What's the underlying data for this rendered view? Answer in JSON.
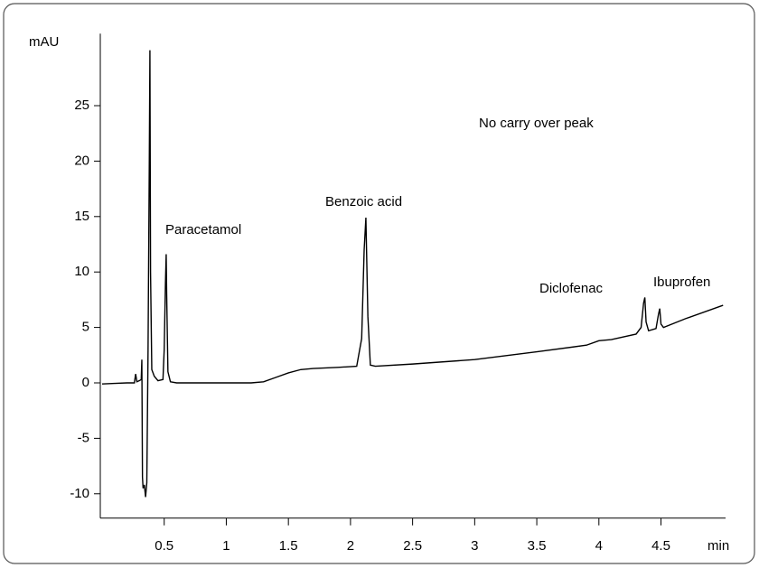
{
  "chart_data": {
    "type": "line",
    "y_label": "mAU",
    "x_label": "min",
    "annotations": [
      "Paracetamol",
      "Benzoic acid",
      "No carry over peak",
      "Diclofenac",
      "Ibuprofen"
    ],
    "color": "#000000",
    "x": [
      0,
      0.1,
      0.2,
      0.26,
      0.27,
      0.28,
      0.3,
      0.315,
      0.32,
      0.325,
      0.33,
      0.34,
      0.35,
      0.36,
      0.37,
      0.38,
      0.385,
      0.39,
      0.4,
      0.42,
      0.45,
      0.49,
      0.5,
      0.51,
      0.516,
      0.52,
      0.53,
      0.55,
      0.6,
      0.8,
      1.0,
      1.2,
      1.3,
      1.4,
      1.5,
      1.6,
      1.7,
      1.9,
      2.05,
      2.09,
      2.11,
      2.124,
      2.14,
      2.16,
      2.2,
      2.5,
      3.0,
      3.5,
      3.9,
      4.0,
      4.1,
      4.3,
      4.34,
      4.36,
      4.37,
      4.38,
      4.4,
      4.46,
      4.48,
      4.49,
      4.5,
      4.52,
      4.7,
      5.0
    ],
    "values": [
      -0.1,
      -0.05,
      0,
      0,
      0.8,
      0.1,
      0.2,
      0.3,
      2.1,
      -8.5,
      -9.5,
      -9.2,
      -10.3,
      -9,
      3,
      20,
      30,
      10,
      1.2,
      0.6,
      0.2,
      0.3,
      3,
      9,
      11.6,
      8,
      1,
      0.1,
      0,
      0,
      0,
      0,
      0.1,
      0.5,
      0.9,
      1.2,
      1.3,
      1.4,
      1.5,
      4,
      12,
      14.9,
      6,
      1.6,
      1.5,
      1.7,
      2.1,
      2.8,
      3.4,
      3.8,
      3.9,
      4.4,
      5,
      7.2,
      7.7,
      5.5,
      4.7,
      4.9,
      6.2,
      6.7,
      5.3,
      5.0,
      5.8,
      7.0
    ],
    "xlim": [
      0,
      5.02
    ],
    "ylim": [
      -12.2,
      31.5
    ],
    "xticks": [
      0.5,
      1,
      1.5,
      2,
      2.5,
      3,
      3.5,
      4,
      4.5
    ],
    "yticks": [
      -10,
      -5,
      0,
      5,
      10,
      15,
      20,
      25
    ]
  }
}
